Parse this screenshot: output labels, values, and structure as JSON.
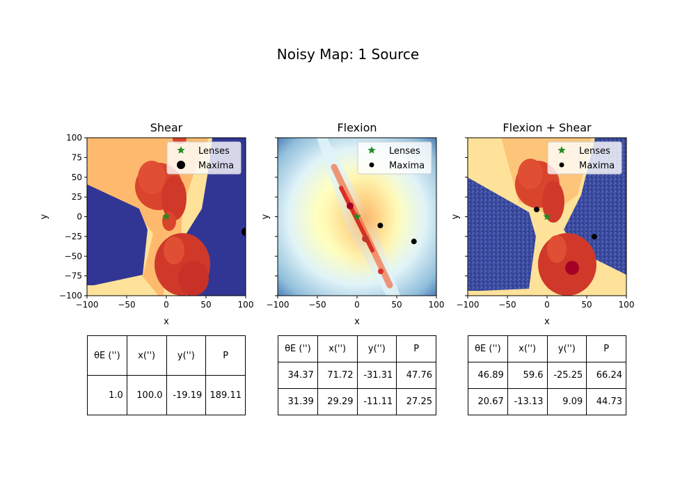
{
  "title": "Noisy Map: 1 Source",
  "chart_data": [
    {
      "type": "heatmap",
      "title": "Shear",
      "xlabel": "x",
      "ylabel": "y",
      "xlim": [
        -100,
        100
      ],
      "ylim": [
        -100,
        100
      ],
      "xticks": [
        "−100",
        "−50",
        "0",
        "50",
        "100"
      ],
      "yticks": [
        "100",
        "75",
        "50",
        "25",
        "0",
        "−25",
        "−50",
        "−75",
        "−100"
      ],
      "colormap": "RdYlBu_r",
      "legend": {
        "position": "upper right",
        "entries": [
          "Lenses",
          "Maxima"
        ]
      },
      "lenses": [
        {
          "x": 0,
          "y": 0
        }
      ],
      "maxima": [
        {
          "x": 100.0,
          "y": -19.19
        }
      ],
      "table": {
        "headers": [
          "θE ('')",
          "x('')",
          "y('')",
          "P"
        ],
        "rows": [
          [
            "1.0",
            "100.0",
            "-19.19",
            "189.11"
          ]
        ]
      }
    },
    {
      "type": "heatmap",
      "title": "Flexion",
      "xlabel": "x",
      "ylabel": "y",
      "xlim": [
        -100,
        100
      ],
      "ylim": [
        -100,
        100
      ],
      "xticks": [
        "−100",
        "−50",
        "0",
        "50",
        "100"
      ],
      "colormap": "RdYlBu_r",
      "legend": {
        "position": "upper right",
        "entries": [
          "Lenses",
          "Maxima"
        ]
      },
      "lenses": [
        {
          "x": 0,
          "y": 0
        }
      ],
      "maxima": [
        {
          "x": 71.72,
          "y": -31.31
        },
        {
          "x": 29.29,
          "y": -11.11
        }
      ],
      "table": {
        "headers": [
          "θE ('')",
          "x('')",
          "y('')",
          "P"
        ],
        "rows": [
          [
            "34.37",
            "71.72",
            "-31.31",
            "47.76"
          ],
          [
            "31.39",
            "29.29",
            "-11.11",
            "27.25"
          ]
        ]
      }
    },
    {
      "type": "heatmap",
      "title": "Flexion + Shear",
      "xlabel": "x",
      "ylabel": "y",
      "xlim": [
        -100,
        100
      ],
      "ylim": [
        -100,
        100
      ],
      "xticks": [
        "−100",
        "−50",
        "0",
        "50",
        "100"
      ],
      "colormap": "RdYlBu_r",
      "legend": {
        "position": "upper right",
        "entries": [
          "Lenses",
          "Maxima"
        ]
      },
      "lenses": [
        {
          "x": 0,
          "y": 0
        }
      ],
      "maxima": [
        {
          "x": 59.6,
          "y": -25.25
        },
        {
          "x": -13.13,
          "y": 9.09
        }
      ],
      "table": {
        "headers": [
          "θE ('')",
          "x('')",
          "y('')",
          "P"
        ],
        "rows": [
          [
            "46.89",
            "59.6",
            "-25.25",
            "66.24"
          ],
          [
            "20.67",
            "-13.13",
            "9.09",
            "44.73"
          ]
        ]
      }
    }
  ],
  "colors": {
    "lens": "#228b22",
    "maxima": "#000000",
    "dark_blue": "#313695",
    "red": "#d73027",
    "orange": "#fdae61",
    "cream": "#fee090",
    "light_blue": "#e0f3f8"
  }
}
